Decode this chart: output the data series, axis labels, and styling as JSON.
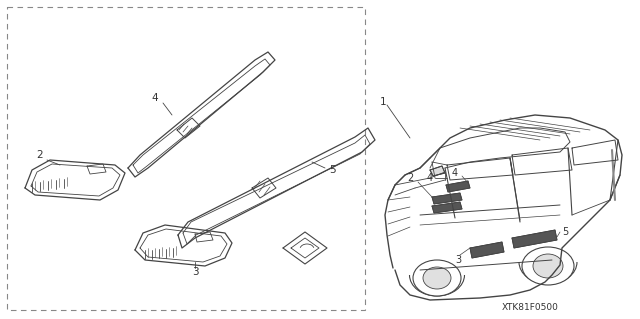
{
  "background_color": "#ffffff",
  "line_color": "#444444",
  "figure_code": "XTK81F0500",
  "fig_width": 6.4,
  "fig_height": 3.19,
  "dpi": 100
}
